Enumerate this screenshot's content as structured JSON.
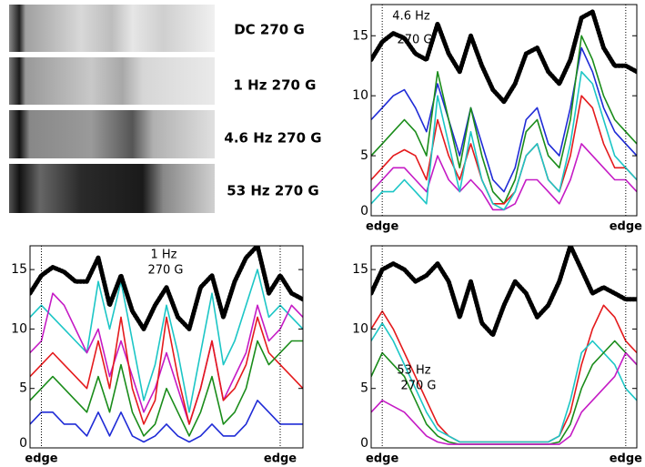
{
  "image_panel": {
    "labels": [
      "DC 270 G",
      "1 Hz 270 G",
      "4.6 Hz 270 G",
      "53 Hz 270 G"
    ]
  },
  "chart_data": [
    {
      "type": "line",
      "annotations": [
        "4.6 Hz",
        "270 G"
      ],
      "categories": [
        null,
        "edge",
        null,
        null,
        null,
        null,
        null,
        null,
        null,
        null,
        null,
        null,
        null,
        null,
        null,
        null,
        null,
        null,
        null,
        null,
        null,
        null,
        null,
        "edge",
        null
      ],
      "ylim": [
        0,
        17.6
      ],
      "yticks": [
        0,
        5,
        10,
        15
      ],
      "series": [
        {
          "color": "#000000",
          "values": [
            13,
            14.5,
            15.2,
            14.8,
            13.5,
            13,
            16,
            13.5,
            12,
            15,
            12.5,
            10.5,
            9.5,
            11,
            13.5,
            14,
            12,
            11,
            13,
            16.5,
            17,
            14,
            12.5,
            12.5,
            12
          ]
        },
        {
          "color": "#1f2bd6",
          "values": [
            8,
            9,
            10,
            10.5,
            9,
            7,
            11,
            8,
            5,
            9,
            6,
            3,
            2,
            4,
            8,
            9,
            6,
            5,
            9,
            14,
            12,
            9,
            7,
            6,
            5
          ]
        },
        {
          "color": "#1a8c1a",
          "values": [
            5,
            6,
            7,
            8,
            7,
            5,
            12,
            8,
            4,
            9,
            5,
            2,
            1,
            3,
            7,
            8,
            5,
            4,
            8,
            15,
            13,
            10,
            8,
            7,
            6
          ]
        },
        {
          "color": "#e41a1c",
          "values": [
            3,
            4,
            5,
            5.5,
            5,
            3,
            8,
            5,
            3,
            6,
            3,
            1,
            1,
            2,
            5,
            6,
            3,
            2,
            5,
            10,
            9,
            6,
            4,
            4,
            3
          ]
        },
        {
          "color": "#c51bc5",
          "values": [
            2,
            3,
            4,
            4,
            3,
            2,
            5,
            3,
            2,
            3,
            2,
            0.5,
            0.5,
            1,
            3,
            3,
            2,
            1,
            3,
            6,
            5,
            4,
            3,
            3,
            2
          ]
        },
        {
          "color": "#1cc6c6",
          "values": [
            1,
            2,
            2,
            3,
            2,
            1,
            10,
            6,
            2,
            7,
            3,
            1,
            0.5,
            2,
            5,
            6,
            3,
            2,
            6,
            12,
            11,
            8,
            5,
            4,
            3
          ]
        }
      ]
    },
    {
      "type": "line",
      "annotations": [
        "1 Hz",
        "270 G"
      ],
      "categories": [
        null,
        "edge",
        null,
        null,
        null,
        null,
        null,
        null,
        null,
        null,
        null,
        null,
        null,
        null,
        null,
        null,
        null,
        null,
        null,
        null,
        null,
        null,
        "edge",
        null,
        null
      ],
      "ylim": [
        0,
        17
      ],
      "yticks": [
        0,
        5,
        10,
        15
      ],
      "series": [
        {
          "color": "#000000",
          "values": [
            13,
            14.5,
            15.2,
            14.8,
            14,
            14,
            16,
            12,
            14.5,
            11.5,
            10,
            12,
            13.5,
            11,
            10,
            13.5,
            14.5,
            11,
            14,
            16,
            17,
            13,
            14.5,
            13,
            12.5
          ]
        },
        {
          "color": "#1cc6c6",
          "values": [
            11,
            12,
            11,
            10,
            9,
            8,
            14,
            10,
            14,
            9,
            4,
            7,
            12,
            8,
            3,
            8,
            13,
            7,
            9,
            12,
            15,
            11,
            12,
            11,
            10
          ]
        },
        {
          "color": "#c51bc5",
          "values": [
            8,
            9,
            13,
            12,
            10,
            8,
            10,
            6,
            9,
            6,
            3,
            5,
            8,
            5,
            2,
            5,
            9,
            4,
            6,
            8,
            12,
            9,
            10,
            12,
            11
          ]
        },
        {
          "color": "#e41a1c",
          "values": [
            6,
            7,
            8,
            7,
            6,
            5,
            9,
            5,
            11,
            5,
            2,
            4,
            11,
            6,
            2,
            5,
            9,
            4,
            5,
            7,
            11,
            8,
            7,
            6,
            5
          ]
        },
        {
          "color": "#1a8c1a",
          "values": [
            4,
            5,
            6,
            5,
            4,
            3,
            6,
            3,
            7,
            3,
            1,
            2,
            5,
            3,
            1,
            3,
            6,
            2,
            3,
            5,
            9,
            7,
            8,
            9,
            9
          ]
        },
        {
          "color": "#1f2bd6",
          "values": [
            2,
            3,
            3,
            2,
            2,
            1,
            3,
            1,
            3,
            1,
            0.5,
            1,
            2,
            1,
            0.5,
            1,
            2,
            1,
            1,
            2,
            4,
            3,
            2,
            2,
            2
          ]
        }
      ]
    },
    {
      "type": "line",
      "annotations": [
        "53 Hz",
        "270 G"
      ],
      "categories": [
        null,
        "edge",
        null,
        null,
        null,
        null,
        null,
        null,
        null,
        null,
        null,
        null,
        null,
        null,
        null,
        null,
        null,
        null,
        null,
        null,
        null,
        null,
        null,
        "edge",
        null
      ],
      "ylim": [
        0,
        17
      ],
      "yticks": [
        0,
        5,
        10,
        15
      ],
      "series": [
        {
          "color": "#000000",
          "values": [
            13,
            15,
            15.5,
            15,
            14,
            14.5,
            15.5,
            14,
            11,
            14,
            10.5,
            9.5,
            12,
            14,
            13,
            11,
            12,
            14,
            17,
            15,
            13,
            13.5,
            13,
            12.5,
            12.5
          ]
        },
        {
          "color": "#e41a1c",
          "values": [
            10,
            11.5,
            10,
            8,
            6,
            4,
            2,
            1,
            0.5,
            0.5,
            0.5,
            0.5,
            0.5,
            0.5,
            0.5,
            0.5,
            0.5,
            1,
            3,
            7,
            10,
            12,
            11,
            9,
            8
          ]
        },
        {
          "color": "#1cc6c6",
          "values": [
            9,
            10.5,
            9,
            7,
            5,
            3,
            1.5,
            1,
            0.5,
            0.5,
            0.5,
            0.5,
            0.5,
            0.5,
            0.5,
            0.5,
            0.5,
            1,
            4,
            8,
            9,
            8,
            7,
            5,
            4
          ]
        },
        {
          "color": "#1a8c1a",
          "values": [
            6,
            8,
            7,
            6,
            4,
            2,
            1,
            0.5,
            0.3,
            0.3,
            0.3,
            0.3,
            0.3,
            0.3,
            0.3,
            0.3,
            0.3,
            0.5,
            2,
            5,
            7,
            8,
            9,
            8,
            7
          ]
        },
        {
          "color": "#c51bc5",
          "values": [
            3,
            4,
            3.5,
            3,
            2,
            1,
            0.5,
            0.3,
            0.3,
            0.3,
            0.3,
            0.3,
            0.3,
            0.3,
            0.3,
            0.3,
            0.3,
            0.3,
            1,
            3,
            4,
            5,
            6,
            8,
            7
          ]
        }
      ]
    }
  ]
}
